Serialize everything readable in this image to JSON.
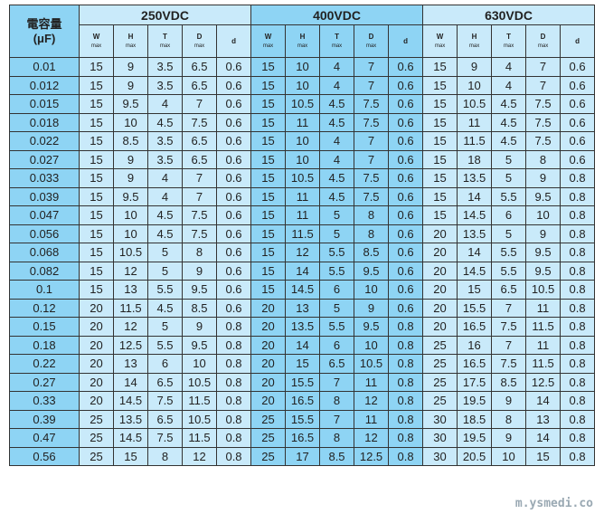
{
  "header": {
    "capacitance_label": "電容量",
    "capacitance_unit": "(μF)",
    "groups": [
      "250VDC",
      "400VDC",
      "630VDC"
    ],
    "sub_columns": [
      {
        "name": "W",
        "note": "max"
      },
      {
        "name": "H",
        "note": "max"
      },
      {
        "name": "T",
        "note": "max"
      },
      {
        "name": "D",
        "note": "max"
      },
      {
        "name": "d",
        "note": ""
      }
    ]
  },
  "colors": {
    "dark": "#8ed4f4",
    "light": "#c9eafa",
    "border": "#333333"
  },
  "rows": [
    [
      "0.01",
      "15",
      "9",
      "3.5",
      "6.5",
      "0.6",
      "15",
      "10",
      "4",
      "7",
      "0.6",
      "15",
      "9",
      "4",
      "7",
      "0.6"
    ],
    [
      "0.012",
      "15",
      "9",
      "3.5",
      "6.5",
      "0.6",
      "15",
      "10",
      "4",
      "7",
      "0.6",
      "15",
      "10",
      "4",
      "7",
      "0.6"
    ],
    [
      "0.015",
      "15",
      "9.5",
      "4",
      "7",
      "0.6",
      "15",
      "10.5",
      "4.5",
      "7.5",
      "0.6",
      "15",
      "10.5",
      "4.5",
      "7.5",
      "0.6"
    ],
    [
      "0.018",
      "15",
      "10",
      "4.5",
      "7.5",
      "0.6",
      "15",
      "11",
      "4.5",
      "7.5",
      "0.6",
      "15",
      "11",
      "4.5",
      "7.5",
      "0.6"
    ],
    [
      "0.022",
      "15",
      "8.5",
      "3.5",
      "6.5",
      "0.6",
      "15",
      "10",
      "4",
      "7",
      "0.6",
      "15",
      "11.5",
      "4.5",
      "7.5",
      "0.6"
    ],
    [
      "0.027",
      "15",
      "9",
      "3.5",
      "6.5",
      "0.6",
      "15",
      "10",
      "4",
      "7",
      "0.6",
      "15",
      "18",
      "5",
      "8",
      "0.6"
    ],
    [
      "0.033",
      "15",
      "9",
      "4",
      "7",
      "0.6",
      "15",
      "10.5",
      "4.5",
      "7.5",
      "0.6",
      "15",
      "13.5",
      "5",
      "9",
      "0.8"
    ],
    [
      "0.039",
      "15",
      "9.5",
      "4",
      "7",
      "0.6",
      "15",
      "11",
      "4.5",
      "7.5",
      "0.6",
      "15",
      "14",
      "5.5",
      "9.5",
      "0.8"
    ],
    [
      "0.047",
      "15",
      "10",
      "4.5",
      "7.5",
      "0.6",
      "15",
      "11",
      "5",
      "8",
      "0.6",
      "15",
      "14.5",
      "6",
      "10",
      "0.8"
    ],
    [
      "0.056",
      "15",
      "10",
      "4.5",
      "7.5",
      "0.6",
      "15",
      "11.5",
      "5",
      "8",
      "0.6",
      "20",
      "13.5",
      "5",
      "9",
      "0.8"
    ],
    [
      "0.068",
      "15",
      "10.5",
      "5",
      "8",
      "0.6",
      "15",
      "12",
      "5.5",
      "8.5",
      "0.6",
      "20",
      "14",
      "5.5",
      "9.5",
      "0.8"
    ],
    [
      "0.082",
      "15",
      "12",
      "5",
      "9",
      "0.6",
      "15",
      "14",
      "5.5",
      "9.5",
      "0.6",
      "20",
      "14.5",
      "5.5",
      "9.5",
      "0.8"
    ],
    [
      "0.1",
      "15",
      "13",
      "5.5",
      "9.5",
      "0.6",
      "15",
      "14.5",
      "6",
      "10",
      "0.6",
      "20",
      "15",
      "6.5",
      "10.5",
      "0.8"
    ],
    [
      "0.12",
      "20",
      "11.5",
      "4.5",
      "8.5",
      "0.6",
      "20",
      "13",
      "5",
      "9",
      "0.6",
      "20",
      "15.5",
      "7",
      "11",
      "0.8"
    ],
    [
      "0.15",
      "20",
      "12",
      "5",
      "9",
      "0.8",
      "20",
      "13.5",
      "5.5",
      "9.5",
      "0.8",
      "20",
      "16.5",
      "7.5",
      "11.5",
      "0.8"
    ],
    [
      "0.18",
      "20",
      "12.5",
      "5.5",
      "9.5",
      "0.8",
      "20",
      "14",
      "6",
      "10",
      "0.8",
      "25",
      "16",
      "7",
      "11",
      "0.8"
    ],
    [
      "0.22",
      "20",
      "13",
      "6",
      "10",
      "0.8",
      "20",
      "15",
      "6.5",
      "10.5",
      "0.8",
      "25",
      "16.5",
      "7.5",
      "11.5",
      "0.8"
    ],
    [
      "0.27",
      "20",
      "14",
      "6.5",
      "10.5",
      "0.8",
      "20",
      "15.5",
      "7",
      "11",
      "0.8",
      "25",
      "17.5",
      "8.5",
      "12.5",
      "0.8"
    ],
    [
      "0.33",
      "20",
      "14.5",
      "7.5",
      "11.5",
      "0.8",
      "20",
      "16.5",
      "8",
      "12",
      "0.8",
      "25",
      "19.5",
      "9",
      "14",
      "0.8"
    ],
    [
      "0.39",
      "25",
      "13.5",
      "6.5",
      "10.5",
      "0.8",
      "25",
      "15.5",
      "7",
      "11",
      "0.8",
      "30",
      "18.5",
      "8",
      "13",
      "0.8"
    ],
    [
      "0.47",
      "25",
      "14.5",
      "7.5",
      "11.5",
      "0.8",
      "25",
      "16.5",
      "8",
      "12",
      "0.8",
      "30",
      "19.5",
      "9",
      "14",
      "0.8"
    ],
    [
      "0.56",
      "25",
      "15",
      "8",
      "12",
      "0.8",
      "25",
      "17",
      "8.5",
      "12.5",
      "0.8",
      "30",
      "20.5",
      "10",
      "15",
      "0.8"
    ]
  ],
  "watermark": "m.ysmedi.co"
}
